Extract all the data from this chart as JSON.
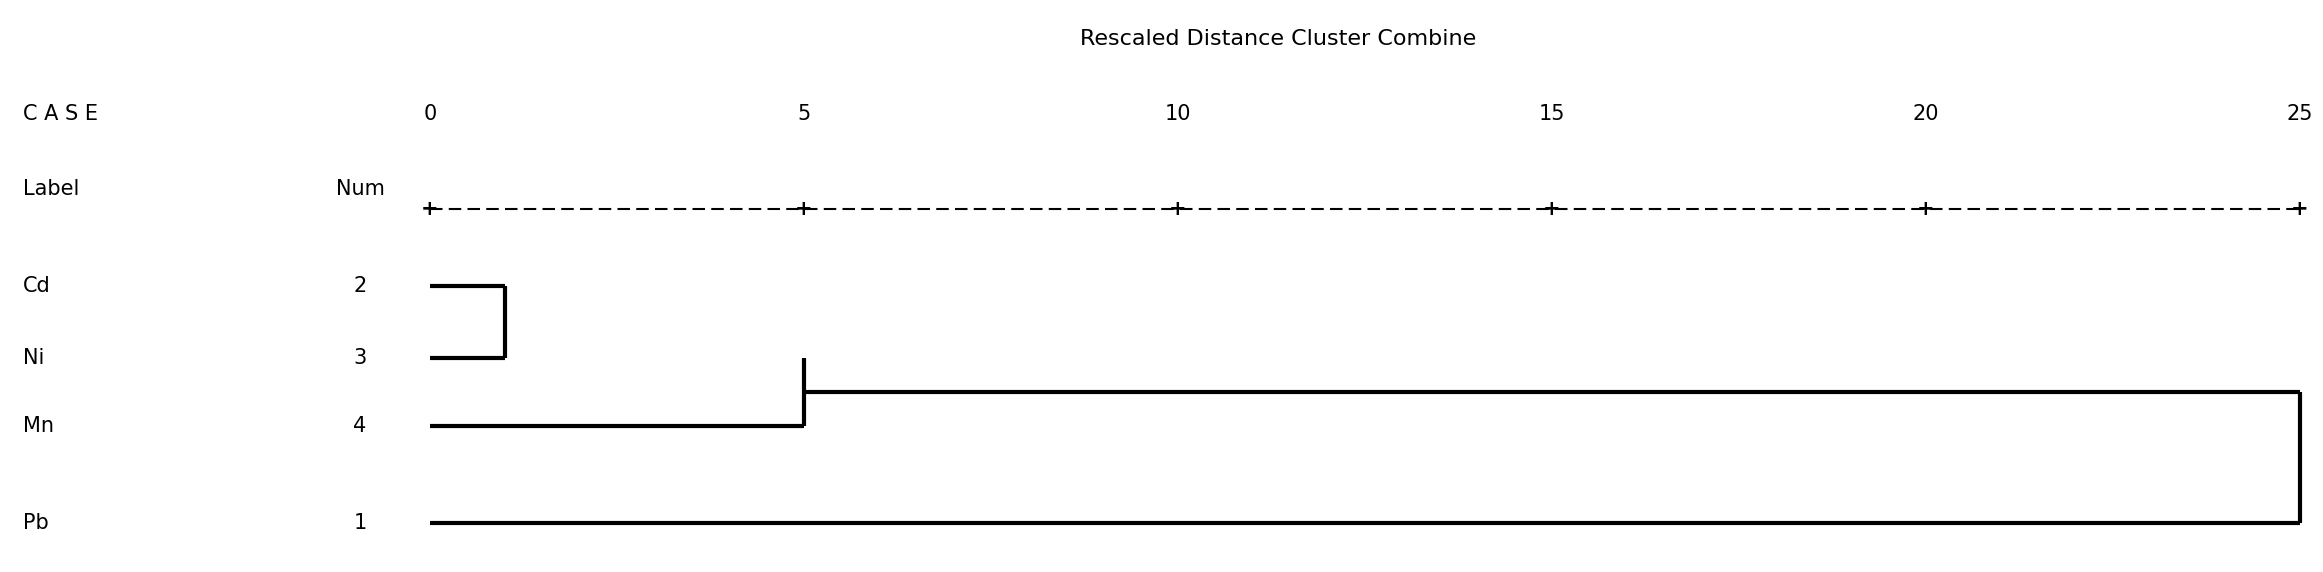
{
  "title": "Rescaled Distance Cluster Combine",
  "case_header": "C A S E",
  "label_header": "Label",
  "num_header": "Num",
  "labels": [
    "Cd",
    "Ni",
    "Mn",
    "Pb"
  ],
  "nums": [
    "2",
    "3",
    "4",
    "1"
  ],
  "x_ticks": [
    0,
    5,
    10,
    15,
    20,
    25
  ],
  "x_max": 25,
  "background_color": "#ffffff",
  "font_family": "Courier New",
  "font_size": 15,
  "title_font_size": 16,
  "line_color": "#000000",
  "line_width": 3.0,
  "dendrogram": {
    "cd_ni_merge": 1.0,
    "cd_ni_mn_merge": 5.0,
    "final_merge": 25.0
  }
}
